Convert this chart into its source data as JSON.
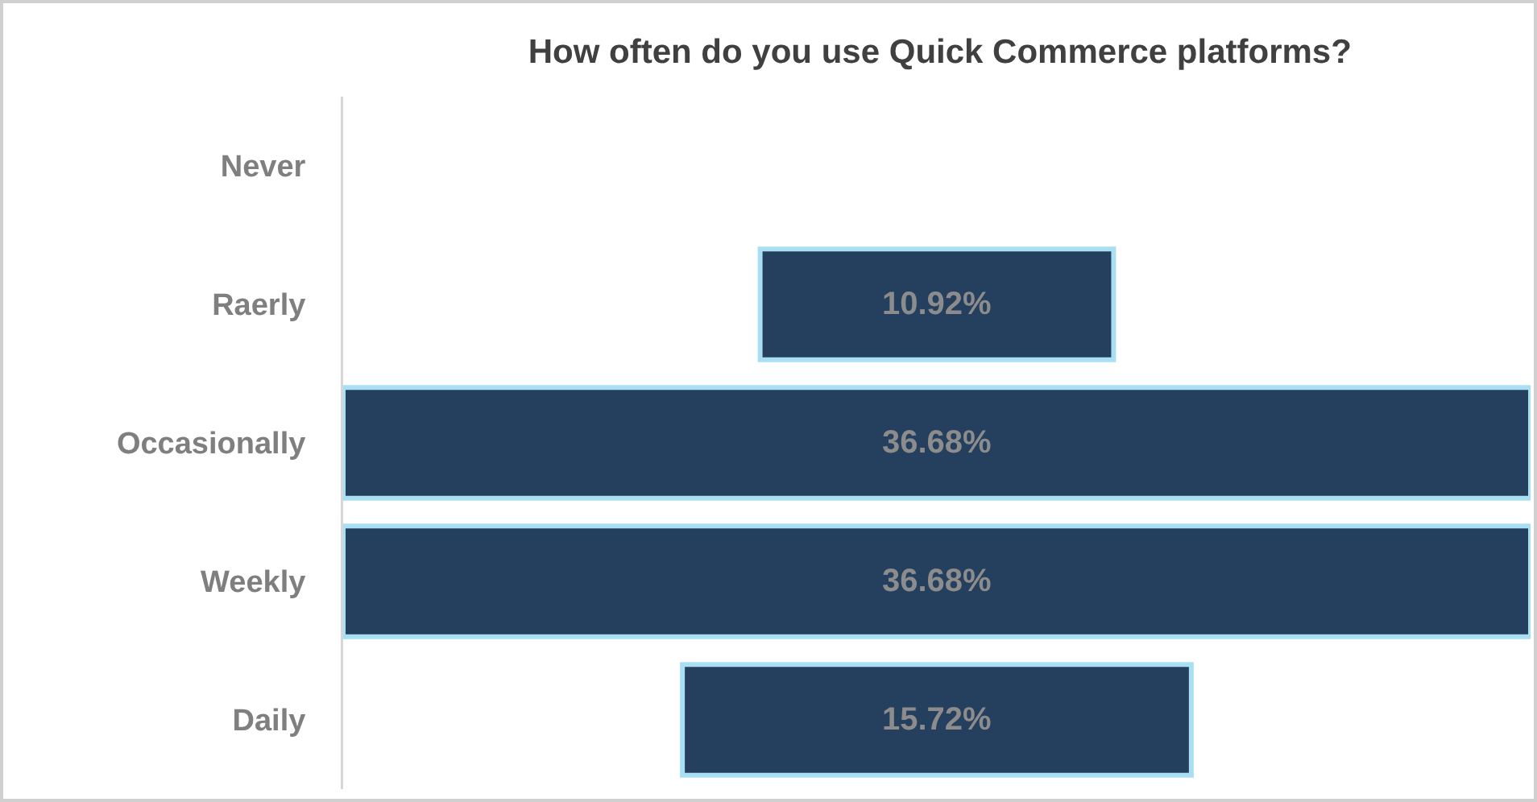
{
  "chart_data": {
    "type": "other",
    "title": "How often do you use Quick Commerce platforms?",
    "categories": [
      "Never",
      "Raerly",
      "Occasionally",
      "Weekly",
      "Daily"
    ],
    "values": [
      null,
      10.92,
      36.68,
      36.68,
      15.72
    ],
    "value_labels": [
      null,
      "10.92%",
      "36.68%",
      "36.68%",
      "15.72%"
    ],
    "color": "#253f5e"
  }
}
